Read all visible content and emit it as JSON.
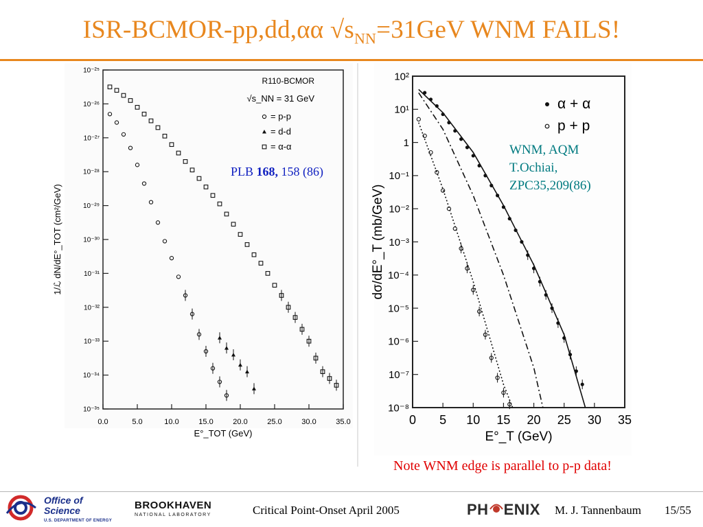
{
  "slide": {
    "title_main": "ISR-BCMOR-pp,dd,αα √s",
    "title_sub": "NN",
    "title_tail": "=31GeV WNM FAILS!",
    "left_citation_prefix": "PLB ",
    "left_citation_bold": "168,",
    "left_citation_tail": " 158 (86)",
    "right_citation": [
      "WNM, AQM",
      "T.Ochiai,",
      "ZPC35,209(86)"
    ],
    "note": "Note WNM edge is parallel to p-p data!",
    "footer": {
      "office_line1": "Office of",
      "office_line2": "Science",
      "office_line3": "U.S. DEPARTMENT OF ENERGY",
      "bnl_line1": "BROOKHAVEN",
      "bnl_line2": "NATIONAL LABORATORY",
      "conference": "Critical Point-Onset April 2005",
      "phenix_left": "PH",
      "phenix_right": "ENIX",
      "author": "M. J. Tannenbaum",
      "page": "15/55"
    },
    "colors": {
      "title": "#e8871e",
      "citation_left": "#1020c0",
      "citation_right": "#007a80",
      "note": "#e00000"
    }
  },
  "chart_data": [
    {
      "type": "scatter",
      "panel": "left",
      "title": "R110-BCMOR",
      "energy_label": "√s_NN = 31 GeV",
      "xlabel": "E°_TOT (GeV)",
      "ylabel": "1/ℒ dN/dE°_TOT (cm²/GeV)",
      "xlim": [
        0,
        35
      ],
      "ylim_log10": [
        -35,
        -25
      ],
      "x_ticks": [
        "0.0",
        "5.0",
        "10.0",
        "15.0",
        "20.0",
        "25.0",
        "30.0",
        "35.0"
      ],
      "y_ticks": [
        "10⁻²⁵",
        "10⁻²⁶",
        "10⁻²⁷",
        "10⁻²⁸",
        "10⁻²⁹",
        "10⁻³⁰",
        "10⁻³¹",
        "10⁻³²",
        "10⁻³³",
        "10⁻³⁴",
        "10⁻³⁵"
      ],
      "legend": [
        {
          "marker": "circle",
          "label": "= p-p"
        },
        {
          "marker": "triangle",
          "label": "= d-d"
        },
        {
          "marker": "square",
          "label": "= α-α"
        }
      ],
      "series": [
        {
          "name": "p-p",
          "marker": "circle",
          "x": [
            1,
            2,
            3,
            4,
            5,
            6,
            7,
            8,
            9,
            10,
            11,
            12,
            13,
            14,
            15,
            16,
            17,
            18
          ],
          "log10y": [
            -26.3,
            -26.55,
            -26.9,
            -27.3,
            -27.8,
            -28.35,
            -28.9,
            -29.5,
            -30.05,
            -30.55,
            -31.1,
            -31.65,
            -32.2,
            -32.8,
            -33.3,
            -33.8,
            -34.2,
            -34.6
          ]
        },
        {
          "name": "d-d",
          "marker": "triangle",
          "x": [
            17,
            18,
            19,
            20,
            21,
            22
          ],
          "log10y": [
            -32.9,
            -33.2,
            -33.4,
            -33.7,
            -33.9,
            -34.4
          ]
        },
        {
          "name": "α-α",
          "marker": "square",
          "x": [
            1,
            2,
            3,
            4,
            5,
            6,
            7,
            8,
            9,
            10,
            11,
            12,
            13,
            14,
            15,
            16,
            17,
            18,
            19,
            20,
            21,
            22,
            23,
            24,
            25,
            26,
            27,
            28,
            29,
            30,
            31,
            32,
            33,
            34
          ],
          "log10y": [
            -25.5,
            -25.6,
            -25.75,
            -25.9,
            -26.1,
            -26.3,
            -26.5,
            -26.7,
            -26.95,
            -27.2,
            -27.45,
            -27.7,
            -27.95,
            -28.2,
            -28.45,
            -28.7,
            -28.95,
            -29.25,
            -29.55,
            -29.85,
            -30.15,
            -30.45,
            -30.7,
            -31.0,
            -31.35,
            -31.65,
            -32.0,
            -32.3,
            -32.65,
            -33.0,
            -33.5,
            -33.9,
            -34.1,
            -34.3
          ]
        }
      ]
    },
    {
      "type": "line",
      "panel": "right",
      "xlabel": "E°_T (GeV)",
      "ylabel": "dσ/dE°_T (mb/GeV)",
      "xlim": [
        0,
        35
      ],
      "ylim_log10": [
        -8,
        2
      ],
      "x_ticks": [
        "0",
        "5",
        "10",
        "15",
        "20",
        "25",
        "30",
        "35"
      ],
      "y_ticks": [
        "10²",
        "10¹",
        "1",
        "10⁻¹",
        "10⁻²",
        "10⁻³",
        "10⁻⁴",
        "10⁻⁵",
        "10⁻⁶",
        "10⁻⁷",
        "10⁻⁸"
      ],
      "legend": [
        {
          "marker": "dot",
          "label": "α + α"
        },
        {
          "marker": "circle",
          "label": "p + p"
        }
      ],
      "series": [
        {
          "name": "α + α",
          "marker": "dot",
          "x": [
            2,
            3,
            4,
            5,
            6,
            7,
            8,
            9,
            10,
            11,
            12,
            13,
            14,
            15,
            16,
            17,
            18,
            19,
            20,
            21,
            22,
            23,
            24,
            25,
            26,
            27,
            28
          ],
          "log10y": [
            1.5,
            1.3,
            1.1,
            0.85,
            0.6,
            0.35,
            0.1,
            -0.15,
            -0.4,
            -0.7,
            -1.0,
            -1.3,
            -1.6,
            -1.95,
            -2.3,
            -2.65,
            -3.0,
            -3.4,
            -3.8,
            -4.2,
            -4.6,
            -5.0,
            -5.45,
            -5.9,
            -6.4,
            -6.9,
            -7.3
          ]
        },
        {
          "name": "p + p",
          "marker": "circle",
          "x": [
            1,
            2,
            3,
            4,
            5,
            6,
            7,
            8,
            9,
            10,
            11,
            12,
            13,
            14,
            15,
            16
          ],
          "log10y": [
            0.7,
            0.2,
            -0.3,
            -0.9,
            -1.45,
            -2.0,
            -2.6,
            -3.2,
            -3.8,
            -4.45,
            -5.1,
            -5.8,
            -6.5,
            -7.1,
            -7.55,
            -7.9
          ]
        },
        {
          "name": "WNM α + α",
          "line": "solid",
          "x": [
            1,
            5,
            10,
            15,
            20,
            25,
            28.5
          ],
          "log10y": [
            1.6,
            0.9,
            -0.3,
            -1.9,
            -3.7,
            -5.8,
            -8
          ]
        },
        {
          "name": "WNM d + d",
          "line": "dash-dot",
          "x": [
            1,
            5,
            10,
            15,
            20,
            21.5
          ],
          "log10y": [
            1.5,
            0.4,
            -1.6,
            -4.0,
            -6.8,
            -8
          ]
        },
        {
          "name": "WNM p + p",
          "line": "dotted",
          "x": [
            1,
            5,
            10,
            15,
            16.5
          ],
          "log10y": [
            0.6,
            -1.4,
            -4.2,
            -7.3,
            -8
          ]
        }
      ]
    }
  ]
}
